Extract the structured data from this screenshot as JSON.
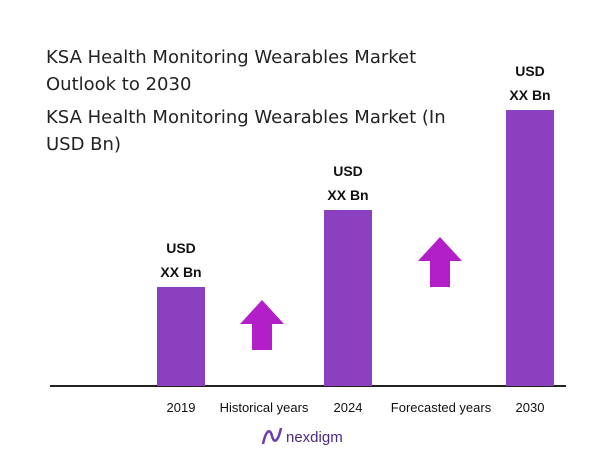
{
  "chart_data": {
    "type": "bar",
    "title": "KSA Health Monitoring Wearables Market Outlook to 2030",
    "subtitle": "KSA Health Monitoring Wearables Market (In USD Bn)",
    "categories": [
      "2019",
      "2024",
      "2030"
    ],
    "values": [
      99,
      176,
      276
    ],
    "bar_labels": [
      [
        "USD",
        "XX Bn"
      ],
      [
        "USD",
        "XX Bn"
      ],
      [
        "USD",
        "XX Bn"
      ]
    ],
    "color": "#8a40bf",
    "annotations": [
      "Historical years",
      "Forecasted years"
    ],
    "arrow_color": "#b21ec8",
    "logo": "nexdigm"
  }
}
